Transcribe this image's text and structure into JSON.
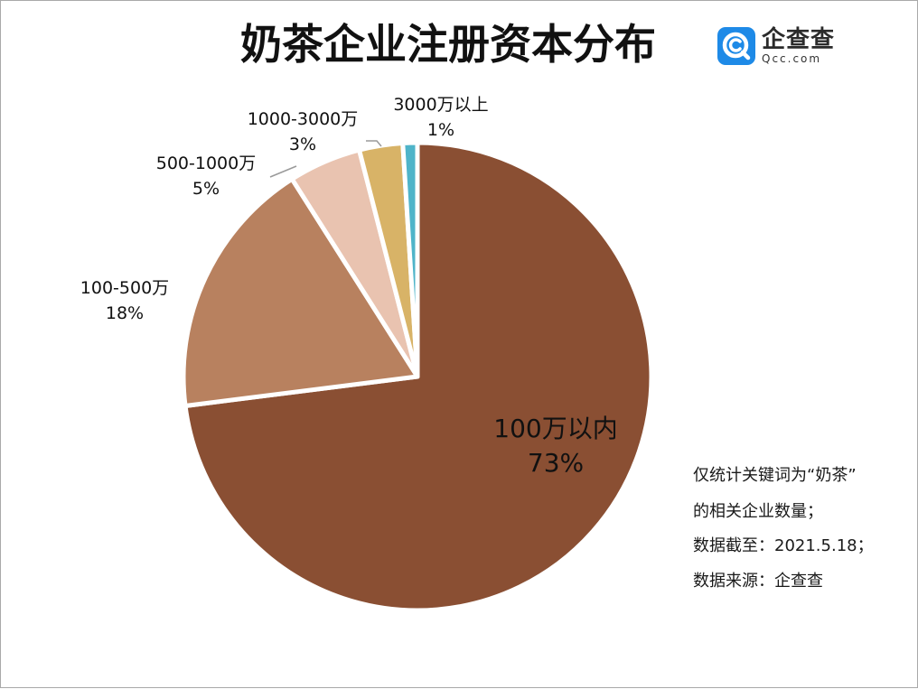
{
  "brand": {
    "name": "企查查",
    "domain": "Qcc.com",
    "icon": "qcc-logo-icon",
    "color": "#1E8AE7"
  },
  "chart_data": {
    "type": "pie",
    "title": "奶茶企业注册资本分布",
    "categories": [
      "100万以内",
      "100-500万",
      "500-1000万",
      "1000-3000万",
      "3000万以上"
    ],
    "values": [
      73,
      18,
      5,
      3,
      1
    ],
    "data_labels": [
      "73%",
      "18%",
      "5%",
      "3%",
      "1%"
    ],
    "colors": [
      "#8A4F33",
      "#B8815F",
      "#E9C3B0",
      "#D8B367",
      "#4FB4C9"
    ],
    "legend": false
  },
  "notes": [
    "仅统计关键词为“奶茶”",
    "的相关企业数量；",
    "数据截至：2021.5.18；",
    "数据来源：企查查"
  ]
}
